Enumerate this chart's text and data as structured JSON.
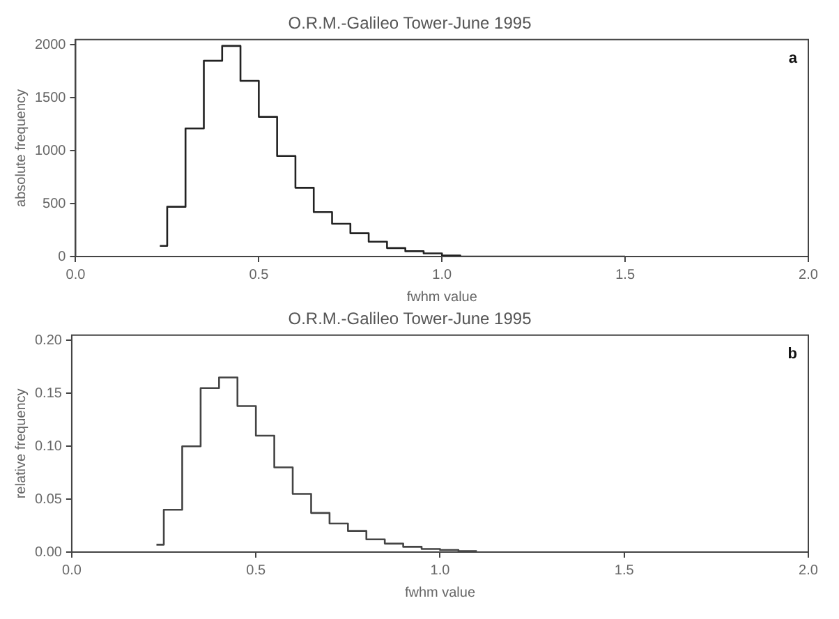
{
  "chart_data": [
    {
      "type": "histogram",
      "title": "O.R.M.-Galileo Tower-June 1995",
      "xlabel": "fwhm value",
      "ylabel": "absolute frequency",
      "color": "#222222",
      "grid": false,
      "legend": false,
      "bins": [
        0.23,
        0.25,
        0.3,
        0.35,
        0.4,
        0.45,
        0.5,
        0.55,
        0.6,
        0.65,
        0.7,
        0.75,
        0.8,
        0.85,
        0.9,
        0.95,
        1.0,
        1.05,
        1.1,
        1.15,
        1.2,
        1.25,
        1.3,
        1.35,
        1.4,
        1.45,
        1.5
      ],
      "values": [
        100,
        470,
        1210,
        1850,
        1990,
        1660,
        1320,
        950,
        650,
        420,
        310,
        220,
        140,
        80,
        50,
        30,
        10,
        0,
        0,
        0,
        0,
        0,
        0,
        0,
        0,
        0
      ],
      "xlim": [
        0,
        2
      ],
      "xticks": [
        {
          "value": 0,
          "label": "0.0"
        },
        {
          "value": 0.5,
          "label": "0.5"
        },
        {
          "value": 1,
          "label": "1.0"
        },
        {
          "value": 1.5,
          "label": "1.5"
        },
        {
          "value": 2,
          "label": "2.0"
        }
      ],
      "ylim": [
        0,
        2050
      ],
      "yticks": [
        0,
        500,
        1000,
        1500,
        2000
      ],
      "annotations": [
        "a"
      ]
    },
    {
      "type": "histogram",
      "title": "O.R.M.-Galileo Tower-June 1995",
      "xlabel": "fwhm value",
      "ylabel": "relative frequency",
      "color": "#444444",
      "grid": false,
      "legend": false,
      "bins": [
        0.23,
        0.25,
        0.3,
        0.35,
        0.4,
        0.45,
        0.5,
        0.55,
        0.6,
        0.65,
        0.7,
        0.75,
        0.8,
        0.85,
        0.9,
        0.95,
        1.0,
        1.05,
        1.1
      ],
      "values": [
        0.007,
        0.04,
        0.1,
        0.155,
        0.165,
        0.138,
        0.11,
        0.08,
        0.055,
        0.037,
        0.027,
        0.02,
        0.012,
        0.008,
        0.005,
        0.003,
        0.002,
        0.001
      ],
      "xlim": [
        0,
        2
      ],
      "xticks": [
        {
          "value": 0,
          "label": "0.0"
        },
        {
          "value": 0.5,
          "label": "0.5"
        },
        {
          "value": 1,
          "label": "1.0"
        },
        {
          "value": 1.5,
          "label": "1.5"
        },
        {
          "value": 2,
          "label": "2.0"
        }
      ],
      "ylim": [
        0,
        0.205
      ],
      "yticks": [
        {
          "value": 0,
          "label": "0.00"
        },
        {
          "value": 0.05,
          "label": "0.05"
        },
        {
          "value": 0.1,
          "label": "0.10"
        },
        {
          "value": 0.15,
          "label": "0.15"
        },
        {
          "value": 0.2,
          "label": "0.20"
        }
      ],
      "annotations": [
        "b"
      ]
    }
  ]
}
